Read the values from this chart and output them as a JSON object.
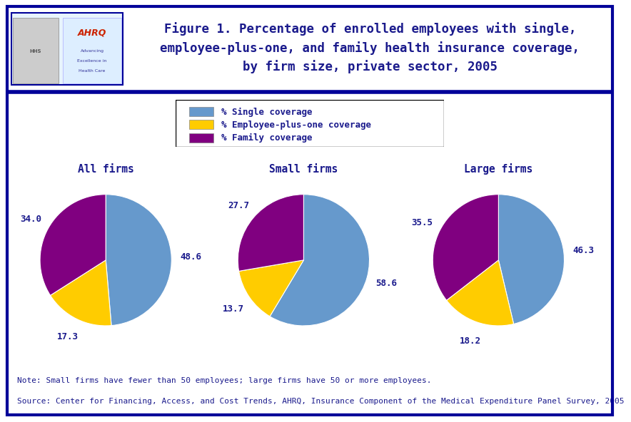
{
  "title_line1": "Figure 1. Percentage of enrolled employees with single,",
  "title_line2": "employee-plus-one, and family health insurance coverage,",
  "title_line3": "by firm size, private sector, 2005",
  "note": "Note: Small firms have fewer than 50 employees; large firms have 50 or more employees.",
  "source": "Source: Center for Financing, Access, and Cost Trends, AHRQ, Insurance Component of the Medical Expenditure Panel Survey, 2005",
  "legend_labels": [
    "% Single coverage",
    "% Employee-plus-one coverage",
    "% Family coverage"
  ],
  "colors": [
    "#6699CC",
    "#FFCC00",
    "#800080"
  ],
  "pie_titles": [
    "All firms",
    "Small firms",
    "Large firms"
  ],
  "pie_data": [
    [
      48.6,
      17.3,
      34.0
    ],
    [
      58.6,
      13.7,
      27.7
    ],
    [
      46.3,
      18.2,
      35.5
    ]
  ],
  "pie_labels": [
    [
      "48.6",
      "17.3",
      "34.0"
    ],
    [
      "58.6",
      "13.7",
      "27.7"
    ],
    [
      "46.3",
      "18.2",
      "35.5"
    ]
  ],
  "title_color": "#1A1A8C",
  "text_color": "#1A1A8C",
  "border_color": "#000099",
  "background_color": "#FFFFFF",
  "title_fontsize": 12.5,
  "pie_title_fontsize": 10.5,
  "label_fontsize": 9,
  "note_fontsize": 8,
  "startangle": 90
}
